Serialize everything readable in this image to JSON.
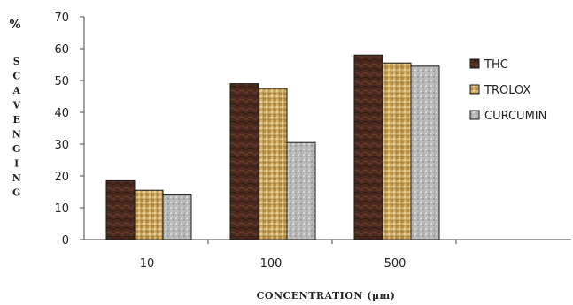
{
  "chart_data": {
    "type": "bar",
    "categories": [
      "10",
      "100",
      "500"
    ],
    "series": [
      {
        "name": "THC",
        "values": [
          18.5,
          49,
          58
        ],
        "color": "#4a2a1e",
        "pattern": "dark-marble"
      },
      {
        "name": "TROLOX",
        "values": [
          15.5,
          47.5,
          55.5
        ],
        "color": "#d9b56b",
        "pattern": "woven-tan"
      },
      {
        "name": "CURCUMIN",
        "values": [
          14,
          30.5,
          54.5
        ],
        "color": "#b4b4b4",
        "pattern": "speckled-grey"
      }
    ],
    "ylim": [
      0,
      70
    ],
    "yticks": [
      0,
      10,
      20,
      30,
      40,
      50,
      60,
      70
    ],
    "ylabel_percent": "%",
    "ylabel_letters": [
      "S",
      "C",
      "A",
      "V",
      "E",
      "N",
      "G",
      "I",
      "N",
      "G"
    ],
    "xlabel": "CONCENTRATION (µm)",
    "legend_position": "right",
    "grid": false
  }
}
